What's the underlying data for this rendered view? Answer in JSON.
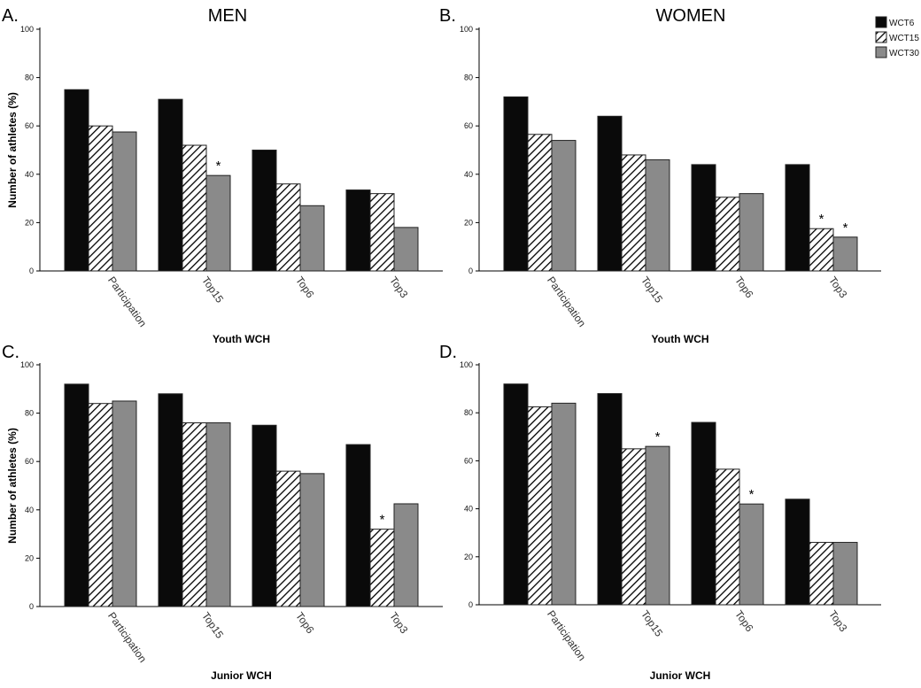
{
  "figure": {
    "series_names": [
      "WCT6",
      "WCT15",
      "WCT30"
    ],
    "series_colors": [
      "#0a0a0a",
      "hatched",
      "#8a8a8a"
    ],
    "ylabel": "Number of athletes (%)"
  },
  "chart_data": [
    {
      "type": "bar",
      "panel_letter": "A.",
      "title": "MEN",
      "xlabel": "Youth WCH",
      "ylabel": "Number of athletes (%)",
      "ylim": [
        0,
        100
      ],
      "yticks": [
        "0",
        "20",
        "40",
        "60",
        "80",
        "100"
      ],
      "categories": [
        "Participation",
        "Top15",
        "Top6",
        "Top3"
      ],
      "series": [
        {
          "name": "WCT6",
          "values": [
            75,
            71,
            50,
            33.5
          ]
        },
        {
          "name": "WCT15",
          "values": [
            60,
            52,
            36,
            32
          ]
        },
        {
          "name": "WCT30",
          "values": [
            57.5,
            39.5,
            27,
            18
          ]
        }
      ],
      "annotations": [
        {
          "category": "Top15",
          "series": "WCT30",
          "text": "*"
        }
      ]
    },
    {
      "type": "bar",
      "panel_letter": "B.",
      "title": "WOMEN",
      "xlabel": "Youth WCH",
      "ylabel": "",
      "ylim": [
        0,
        100
      ],
      "yticks": [
        "0",
        "20",
        "40",
        "60",
        "80",
        "100"
      ],
      "categories": [
        "Participation",
        "Top15",
        "Top6",
        "Top3"
      ],
      "series": [
        {
          "name": "WCT6",
          "values": [
            72,
            64,
            44,
            44
          ]
        },
        {
          "name": "WCT15",
          "values": [
            56.5,
            48,
            30.5,
            17.5
          ]
        },
        {
          "name": "WCT30",
          "values": [
            54,
            46,
            32,
            14
          ]
        }
      ],
      "annotations": [
        {
          "category": "Top3",
          "series": "WCT15",
          "text": "*"
        },
        {
          "category": "Top3",
          "series": "WCT30",
          "text": "*"
        }
      ]
    },
    {
      "type": "bar",
      "panel_letter": "C.",
      "title": "",
      "xlabel": "Junior WCH",
      "ylabel": "Number of athletes (%)",
      "ylim": [
        0,
        100
      ],
      "yticks": [
        "0",
        "20",
        "40",
        "60",
        "80",
        "100"
      ],
      "categories": [
        "Participation",
        "Top15",
        "Top6",
        "Top3"
      ],
      "series": [
        {
          "name": "WCT6",
          "values": [
            92,
            88,
            75,
            67
          ]
        },
        {
          "name": "WCT15",
          "values": [
            84,
            76,
            56,
            32
          ]
        },
        {
          "name": "WCT30",
          "values": [
            85,
            76,
            55,
            42.5
          ]
        }
      ],
      "annotations": [
        {
          "category": "Top3",
          "series": "WCT15",
          "text": "*"
        }
      ]
    },
    {
      "type": "bar",
      "panel_letter": "D.",
      "title": "",
      "xlabel": "Junior WCH",
      "ylabel": "",
      "ylim": [
        0,
        100
      ],
      "yticks": [
        "0",
        "20",
        "40",
        "60",
        "80",
        "100"
      ],
      "categories": [
        "Participation",
        "Top15",
        "Top6",
        "Top3"
      ],
      "series": [
        {
          "name": "WCT6",
          "values": [
            92,
            88,
            76,
            44
          ]
        },
        {
          "name": "WCT15",
          "values": [
            82.5,
            65,
            56.5,
            26
          ]
        },
        {
          "name": "WCT30",
          "values": [
            84,
            66,
            42,
            26
          ]
        }
      ],
      "annotations": [
        {
          "category": "Top15",
          "series": "WCT30",
          "text": "*"
        },
        {
          "category": "Top6",
          "series": "WCT30",
          "text": "*"
        }
      ]
    }
  ]
}
